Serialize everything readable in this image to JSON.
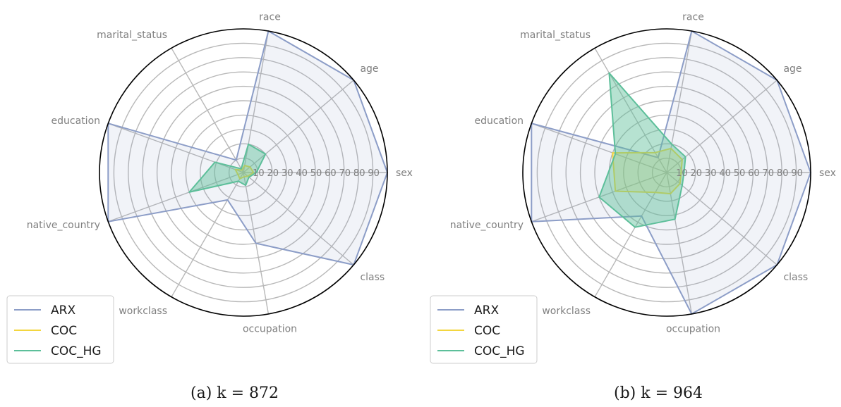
{
  "chart_data": [
    {
      "type": "radar",
      "caption": "(a) k = 872",
      "axes": [
        "sex",
        "age",
        "race",
        "marital_status",
        "education",
        "native_country",
        "workclass",
        "occupation",
        "class"
      ],
      "radial_ticks": [
        "10",
        "20",
        "30",
        "40",
        "50",
        "60",
        "70",
        "80",
        "90"
      ],
      "rlim": [
        0,
        100
      ],
      "grid": true,
      "legend_position": "lower-left",
      "series": [
        {
          "name": "ARX",
          "color": "#8c9dc7",
          "values": [
            100,
            100,
            100,
            10,
            100,
            100,
            22,
            50,
            100
          ]
        },
        {
          "name": "COC",
          "color": "#f3d63f",
          "values": [
            7,
            6,
            5,
            2,
            6,
            4,
            5,
            3,
            4
          ]
        },
        {
          "name": "COC_HG",
          "color": "#5dbf9a",
          "values": [
            9,
            20,
            20,
            3,
            21,
            40,
            7,
            9,
            5
          ]
        }
      ]
    },
    {
      "type": "radar",
      "caption": "(b) k = 964",
      "axes": [
        "sex",
        "age",
        "race",
        "marital_status",
        "education",
        "native_country",
        "workclass",
        "occupation",
        "class"
      ],
      "radial_ticks": [
        "10",
        "20",
        "30",
        "40",
        "50",
        "60",
        "70",
        "80",
        "90"
      ],
      "rlim": [
        0,
        100
      ],
      "grid": true,
      "legend_position": "lower-left",
      "series": [
        {
          "name": "ARX",
          "color": "#8c9dc7",
          "values": [
            100,
            100,
            100,
            12,
            100,
            100,
            35,
            100,
            100
          ]
        },
        {
          "name": "COC",
          "color": "#f3d63f",
          "values": [
            10,
            14,
            17,
            16,
            40,
            38,
            16,
            15,
            12
          ]
        },
        {
          "name": "COC_HG",
          "color": "#5dbf9a",
          "values": [
            12,
            17,
            20,
            80,
            38,
            50,
            44,
            33,
            14
          ]
        }
      ]
    }
  ]
}
